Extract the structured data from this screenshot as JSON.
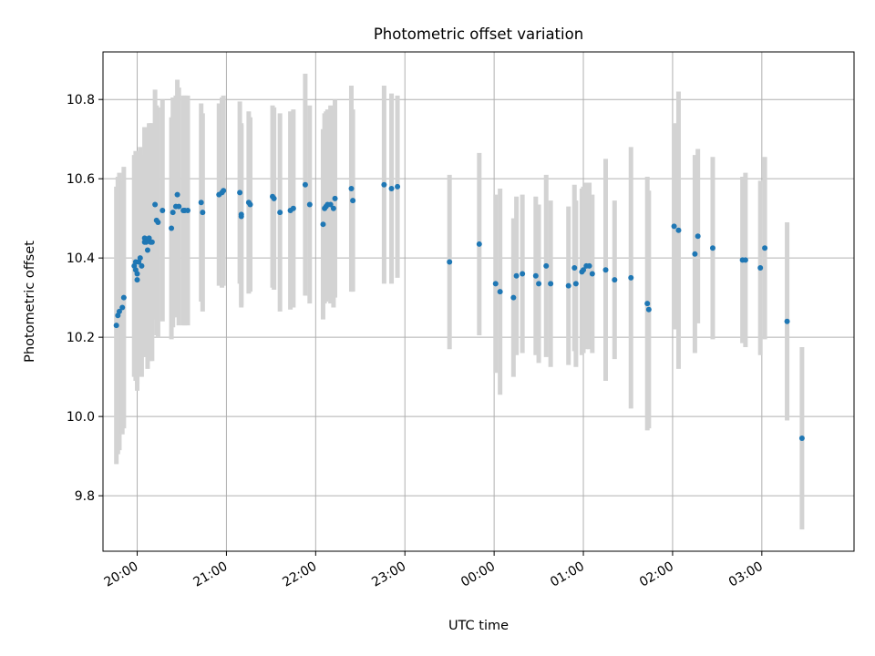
{
  "chart_data": {
    "type": "scatter",
    "title": "Photometric offset variation",
    "xlabel": "UTC time",
    "ylabel": "Photometric offset",
    "x_axis": "time",
    "xlim": [
      "19:37",
      "28:02"
    ],
    "ylim": [
      9.66,
      10.92
    ],
    "x_ticks": [
      {
        "t": "20:00",
        "label": "20:00"
      },
      {
        "t": "21:00",
        "label": "21:00"
      },
      {
        "t": "22:00",
        "label": "22:00"
      },
      {
        "t": "23:00",
        "label": "23:00"
      },
      {
        "t": "24:00",
        "label": "00:00"
      },
      {
        "t": "25:00",
        "label": "01:00"
      },
      {
        "t": "26:00",
        "label": "02:00"
      },
      {
        "t": "27:00",
        "label": "03:00"
      }
    ],
    "y_ticks": [
      9.8,
      10.0,
      10.2,
      10.4,
      10.6,
      10.8
    ],
    "grid": true,
    "colors": {
      "points": "#1f77b4",
      "errorbars": "#d3d3d3",
      "grid": "#b0b0b0"
    },
    "series": [
      {
        "x": [
          "19:46",
          "19:47",
          "19:48",
          "19:50",
          "19:51",
          "19:58",
          "19:59",
          "19:59",
          "20:00",
          "20:00",
          "20:01",
          "20:02",
          "20:03",
          "20:05",
          "20:05",
          "20:06",
          "20:07",
          "20:08",
          "20:09",
          "20:10",
          "20:12",
          "20:13",
          "20:14",
          "20:17",
          "20:23",
          "20:24",
          "20:26",
          "20:27",
          "20:28",
          "20:31",
          "20:32",
          "20:34",
          "20:43",
          "20:44",
          "20:55",
          "20:57",
          "20:58",
          "21:09",
          "21:10",
          "21:10",
          "21:15",
          "21:16",
          "21:31",
          "21:32",
          "21:36",
          "21:43",
          "21:45",
          "21:53",
          "21:56",
          "22:05",
          "22:06",
          "22:07",
          "22:08",
          "22:10",
          "22:12",
          "22:13",
          "22:24",
          "22:25",
          "22:46",
          "22:51",
          "22:55",
          "23:30",
          "23:50",
          "24:01",
          "24:04",
          "24:13",
          "24:15",
          "24:19",
          "24:28",
          "24:30",
          "24:35",
          "24:38",
          "24:50",
          "24:54",
          "24:55",
          "24:59",
          "25:00",
          "25:02",
          "25:04",
          "25:06",
          "25:15",
          "25:21",
          "25:32",
          "25:43",
          "25:44",
          "26:01",
          "26:04",
          "26:15",
          "26:17",
          "26:27",
          "26:47",
          "26:49",
          "26:59",
          "27:02",
          "27:17",
          "27:27"
        ],
        "y": [
          10.23,
          10.255,
          10.265,
          10.275,
          10.3,
          10.38,
          10.39,
          10.37,
          10.36,
          10.345,
          10.39,
          10.4,
          10.38,
          10.45,
          10.44,
          10.44,
          10.42,
          10.45,
          10.44,
          10.44,
          10.535,
          10.495,
          10.49,
          10.52,
          10.475,
          10.515,
          10.53,
          10.56,
          10.53,
          10.52,
          10.52,
          10.52,
          10.54,
          10.515,
          10.56,
          10.565,
          10.57,
          10.565,
          10.51,
          10.505,
          10.54,
          10.535,
          10.555,
          10.55,
          10.515,
          10.52,
          10.525,
          10.585,
          10.535,
          10.485,
          10.525,
          10.53,
          10.535,
          10.535,
          10.525,
          10.55,
          10.575,
          10.545,
          10.585,
          10.575,
          10.58,
          10.39,
          10.435,
          10.335,
          10.315,
          10.3,
          10.355,
          10.36,
          10.355,
          10.335,
          10.38,
          10.335,
          10.33,
          10.375,
          10.335,
          10.365,
          10.37,
          10.38,
          10.38,
          10.36,
          10.37,
          10.345,
          10.35,
          10.285,
          10.27,
          10.48,
          10.47,
          10.41,
          10.455,
          10.425,
          10.395,
          10.395,
          10.375,
          10.425,
          10.24,
          9.945
        ],
        "yerr": [
          0.35,
          0.35,
          0.35,
          0.32,
          0.33,
          0.28,
          0.28,
          0.28,
          0.28,
          0.28,
          0.28,
          0.28,
          0.28,
          0.28,
          0.29,
          0.29,
          0.3,
          0.29,
          0.3,
          0.3,
          0.29,
          0.29,
          0.29,
          0.28,
          0.28,
          0.29,
          0.28,
          0.29,
          0.3,
          0.29,
          0.29,
          0.29,
          0.25,
          0.25,
          0.23,
          0.24,
          0.24,
          0.23,
          0.23,
          0.23,
          0.23,
          0.22,
          0.23,
          0.23,
          0.25,
          0.25,
          0.25,
          0.28,
          0.25,
          0.24,
          0.24,
          0.24,
          0.24,
          0.25,
          0.25,
          0.25,
          0.26,
          0.23,
          0.25,
          0.24,
          0.23,
          0.22,
          0.23,
          0.225,
          0.26,
          0.2,
          0.2,
          0.2,
          0.2,
          0.2,
          0.23,
          0.21,
          0.2,
          0.21,
          0.21,
          0.21,
          0.21,
          0.21,
          0.21,
          0.2,
          0.28,
          0.2,
          0.33,
          0.32,
          0.3,
          0.26,
          0.35,
          0.25,
          0.22,
          0.23,
          0.21,
          0.22,
          0.22,
          0.23,
          0.25,
          0.23
        ]
      }
    ]
  }
}
